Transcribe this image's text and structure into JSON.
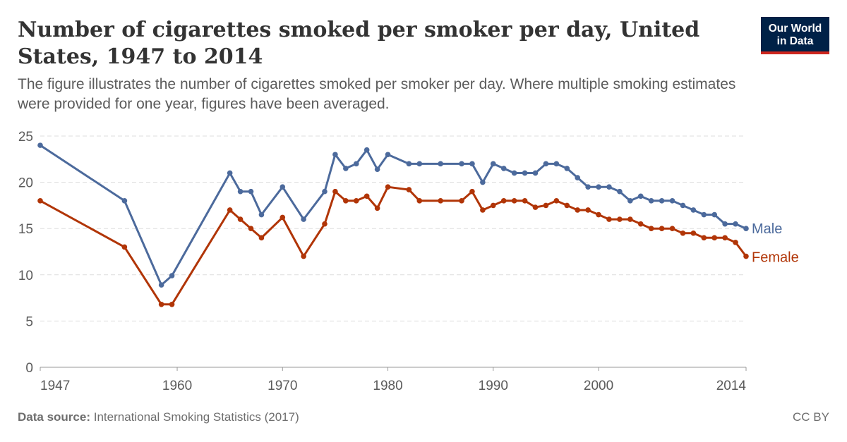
{
  "header": {
    "title": "Number of cigarettes smoked per smoker per day, United States, 1947 to 2014",
    "subtitle": "The figure illustrates the number of cigarettes smoked per smoker per day. Where multiple smoking estimates were provided for one year, figures have been averaged."
  },
  "logo": {
    "line1": "Our World",
    "line2": "in Data",
    "bg_color": "#002147",
    "accent_color": "#ce261e"
  },
  "footer": {
    "source_label": "Data source:",
    "source_text": "International Smoking Statistics (2017)",
    "license": "CC BY"
  },
  "chart_data": {
    "type": "line",
    "title": "Number of cigarettes smoked per smoker per day, United States, 1947 to 2014",
    "xlabel": "",
    "ylabel": "",
    "xlim": [
      1947,
      2014
    ],
    "ylim": [
      0,
      25
    ],
    "x_ticks": [
      1947,
      1960,
      1970,
      1980,
      1990,
      2000,
      2014
    ],
    "y_ticks": [
      0,
      5,
      10,
      15,
      20,
      25
    ],
    "grid": "horizontal dashed",
    "legend": "line-end labels, right",
    "series": [
      {
        "name": "Male",
        "color": "#4c6a9c",
        "points": [
          [
            1947,
            24
          ],
          [
            1955,
            18
          ],
          [
            1958.5,
            8.9
          ],
          [
            1959.5,
            9.9
          ],
          [
            1965,
            21
          ],
          [
            1966,
            19
          ],
          [
            1967,
            19
          ],
          [
            1968,
            16.5
          ],
          [
            1970,
            19.5
          ],
          [
            1972,
            16
          ],
          [
            1974,
            19
          ],
          [
            1975,
            23
          ],
          [
            1976,
            21.5
          ],
          [
            1977,
            22
          ],
          [
            1978,
            23.5
          ],
          [
            1979,
            21.4
          ],
          [
            1980,
            23
          ],
          [
            1982,
            22
          ],
          [
            1983,
            22
          ],
          [
            1985,
            22
          ],
          [
            1987,
            22
          ],
          [
            1988,
            22
          ],
          [
            1989,
            20
          ],
          [
            1990,
            22
          ],
          [
            1991,
            21.5
          ],
          [
            1992,
            21
          ],
          [
            1993,
            21
          ],
          [
            1994,
            21
          ],
          [
            1995,
            22
          ],
          [
            1996,
            22
          ],
          [
            1997,
            21.5
          ],
          [
            1998,
            20.5
          ],
          [
            1999,
            19.5
          ],
          [
            2000,
            19.5
          ],
          [
            2001,
            19.5
          ],
          [
            2002,
            19
          ],
          [
            2003,
            18
          ],
          [
            2004,
            18.5
          ],
          [
            2005,
            18
          ],
          [
            2006,
            18
          ],
          [
            2007,
            18
          ],
          [
            2008,
            17.5
          ],
          [
            2009,
            17
          ],
          [
            2010,
            16.5
          ],
          [
            2011,
            16.5
          ],
          [
            2012,
            15.5
          ],
          [
            2013,
            15.5
          ],
          [
            2014,
            15
          ]
        ]
      },
      {
        "name": "Female",
        "color": "#b13507",
        "points": [
          [
            1947,
            18
          ],
          [
            1955,
            13
          ],
          [
            1958.5,
            6.8
          ],
          [
            1959.5,
            6.8
          ],
          [
            1965,
            17
          ],
          [
            1966,
            16
          ],
          [
            1967,
            15
          ],
          [
            1968,
            14
          ],
          [
            1970,
            16.2
          ],
          [
            1972,
            12
          ],
          [
            1974,
            15.5
          ],
          [
            1975,
            19
          ],
          [
            1976,
            18
          ],
          [
            1977,
            18
          ],
          [
            1978,
            18.5
          ],
          [
            1979,
            17.2
          ],
          [
            1980,
            19.5
          ],
          [
            1982,
            19.2
          ],
          [
            1983,
            18
          ],
          [
            1985,
            18
          ],
          [
            1987,
            18
          ],
          [
            1988,
            19
          ],
          [
            1989,
            17
          ],
          [
            1990,
            17.5
          ],
          [
            1991,
            18
          ],
          [
            1992,
            18
          ],
          [
            1993,
            18
          ],
          [
            1994,
            17.3
          ],
          [
            1995,
            17.5
          ],
          [
            1996,
            18
          ],
          [
            1997,
            17.5
          ],
          [
            1998,
            17
          ],
          [
            1999,
            17
          ],
          [
            2000,
            16.5
          ],
          [
            2001,
            16
          ],
          [
            2002,
            16
          ],
          [
            2003,
            16
          ],
          [
            2004,
            15.5
          ],
          [
            2005,
            15
          ],
          [
            2006,
            15
          ],
          [
            2007,
            15
          ],
          [
            2008,
            14.5
          ],
          [
            2009,
            14.5
          ],
          [
            2010,
            14
          ],
          [
            2011,
            14
          ],
          [
            2012,
            14
          ],
          [
            2013,
            13.5
          ],
          [
            2014,
            12
          ]
        ]
      }
    ]
  }
}
